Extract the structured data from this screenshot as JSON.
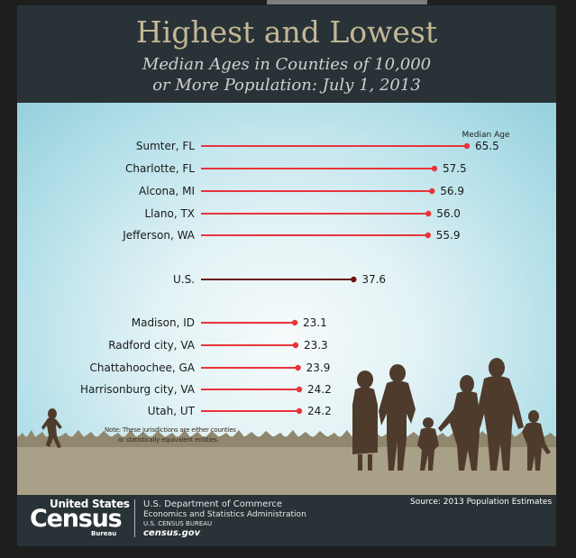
{
  "header": {
    "title": "Highest and Lowest",
    "subtitle_line1": "Median Ages in Counties of 10,000",
    "subtitle_line2": "or More Population: July 1, 2013"
  },
  "chart_data": {
    "type": "bar",
    "series_label": "Median Age",
    "categories": [
      "Sumter, FL",
      "Charlotte, FL",
      "Alcona, MI",
      "Llano, TX",
      "Jefferson, WA",
      "U.S.",
      "Madison, ID",
      "Radford city, VA",
      "Chattahoochee, GA",
      "Harrisonburg city, VA",
      "Utah, UT"
    ],
    "values": [
      65.5,
      57.5,
      56.9,
      56.0,
      55.9,
      37.6,
      23.1,
      23.3,
      23.9,
      24.2,
      24.2
    ],
    "value_labels": [
      "65.5",
      "57.5",
      "56.9",
      "56.0",
      "55.9",
      "37.6",
      "23.1",
      "23.3",
      "23.9",
      "24.2",
      "24.2"
    ],
    "groups": [
      "highest",
      "highest",
      "highest",
      "highest",
      "highest",
      "us",
      "lowest",
      "lowest",
      "lowest",
      "lowest",
      "lowest"
    ],
    "colors": {
      "highest": "#e8343a",
      "lowest": "#e8343a",
      "us": "#6b1410"
    },
    "xlabel": "",
    "ylabel": ""
  },
  "note": {
    "line1": "Note: These jurisdictions are either counties",
    "line2": "or statistically equivalent entities."
  },
  "footer": {
    "logo_united_states": "United States",
    "logo_census": "Census",
    "logo_bureau": "Bureau",
    "department": "U.S. Department of Commerce",
    "administration": "Economics and Statistics Administration",
    "bureau": "U.S. CENSUS BUREAU",
    "website": "census.gov",
    "source": "Source: 2013 Population Estimates"
  }
}
